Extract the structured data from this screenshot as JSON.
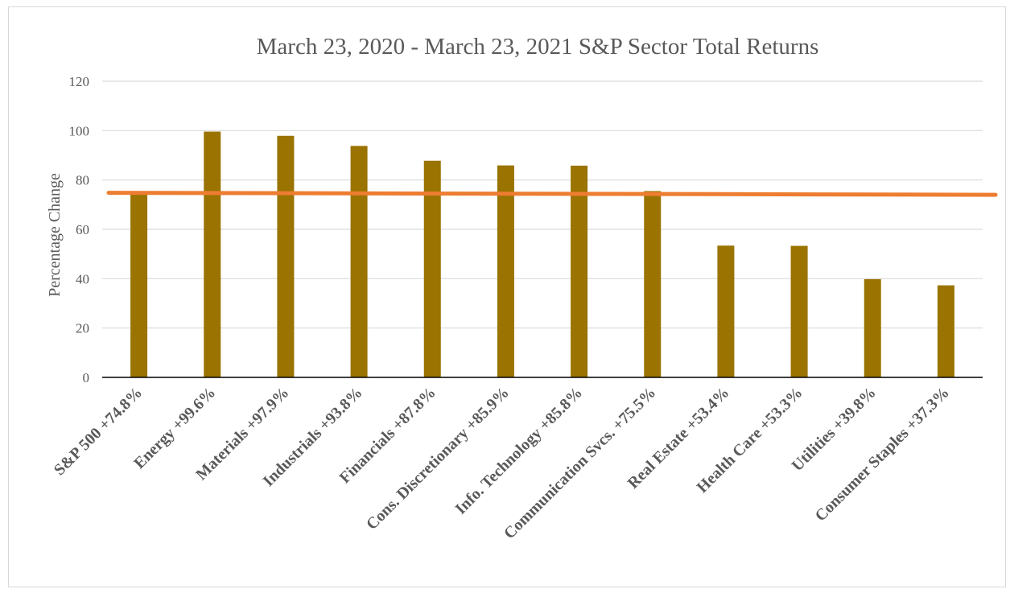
{
  "chart_data": {
    "type": "bar",
    "title": "March 23, 2020 - March 23, 2021 S&P Sector Total Returns",
    "ylabel": "Percentage Change",
    "xlabel": "",
    "ylim": [
      0,
      120
    ],
    "yticks": [
      0,
      20,
      40,
      60,
      80,
      100,
      120
    ],
    "grid": true,
    "legend": "none",
    "categories": [
      "S&P 500 +74.8%",
      "Energy +99.6%",
      "Materials +97.9%",
      "Industrials +93.8%",
      "Financials +87.8%",
      "Cons. Discretionary +85.9%",
      "Info. Technology +85.8%",
      "Communication Svcs. +75.5%",
      "Real Estate +53.4%",
      "Health Care +53.3%",
      "Utilities +39.8%",
      "Consumer Staples +37.3%"
    ],
    "values": [
      74.8,
      99.6,
      97.9,
      93.8,
      87.8,
      85.9,
      85.8,
      75.5,
      53.4,
      53.3,
      39.8,
      37.3
    ],
    "reference_line": {
      "start": 74.8,
      "end": 74.0
    },
    "colors": {
      "bar": "#9A7300",
      "reference_line": "#ED7D31",
      "grid": "#d9d9d9",
      "axis": "#000000",
      "text": "#595959"
    }
  }
}
